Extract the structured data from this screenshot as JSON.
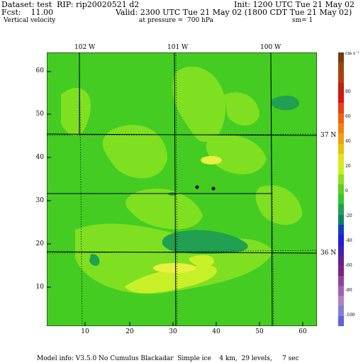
{
  "header": {
    "dataset_line": "Dataset: test  RIP: rip20020521 d2",
    "init_line": "Init: 1200 UTC Tue 21 May 02",
    "fcst_label": "Fcst:    11.00",
    "valid_line": "Valid: 2300 UTC Tue 21 May 02 (1800 CDT Tue 21 May 02)",
    "field_name": "Vertical velocity",
    "pressure_line": "at pressure =  700 hPa",
    "sm_line": "sm= 1"
  },
  "footer": {
    "model_info": "Model info: V3.5.0 No Cumulus Blackadar  Simple ice    4 km,  29 levels,     7 sec"
  },
  "plot": {
    "x_ticks": [
      "10",
      "20",
      "30",
      "40",
      "50",
      "60"
    ],
    "y_ticks": [
      "10",
      "20",
      "30",
      "40",
      "50",
      "60"
    ],
    "lon_labels": [
      "102 W",
      "101 W",
      "100 W"
    ],
    "lat_labels": [
      "37 N",
      "36 N"
    ],
    "background_color": "#44cc22"
  },
  "colorbar": {
    "unit": "cm s⁻¹",
    "labels": [
      "80",
      "60",
      "40",
      "20",
      "0",
      "-20",
      "-40",
      "-60",
      "-80",
      "-100"
    ],
    "colors": [
      "#7a3a10",
      "#9a4410",
      "#b04010",
      "#c02010",
      "#e01010",
      "#e84010",
      "#f06010",
      "#f08010",
      "#f0a010",
      "#e8c010",
      "#e8e020",
      "#c8f020",
      "#90e020",
      "#60d020",
      "#30c830",
      "#20a050",
      "#108060",
      "#1040c0",
      "#2020d0",
      "#4020b0",
      "#602090",
      "#802080",
      "#9040a0",
      "#a060b0",
      "#b080c0",
      "#8080d0",
      "#6060e0"
    ]
  }
}
